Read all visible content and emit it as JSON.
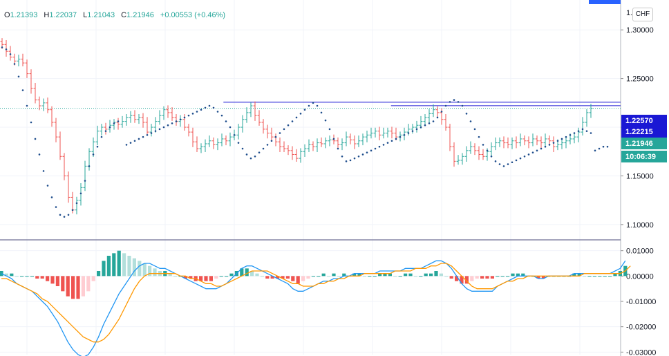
{
  "legend": {
    "o_label": "O",
    "open": "1.21393",
    "h_label": "H",
    "high": "1.22037",
    "l_label": "L",
    "low": "1.21043",
    "c_label": "C",
    "close": "1.21946",
    "change": "+0.00553 (+0.46%)"
  },
  "currency_button": "CHF",
  "colors": {
    "up": "#26a69a",
    "down": "#ef5350",
    "sar": "#1e4d8c",
    "macd": "#2196f3",
    "signal": "#ff9800",
    "hline": "#1a18d4",
    "hist_up_strong": "#26a69a",
    "hist_up_weak": "#b2dfdb",
    "hist_down_strong": "#ef5350",
    "hist_down_weak": "#ffcdd2"
  },
  "price_badges": [
    {
      "text": "1.22570",
      "color": "#1a18d4",
      "value": 1.2257
    },
    {
      "text": "1.22215",
      "color": "#1a18d4",
      "value": 1.22215
    },
    {
      "text": "1.21946",
      "color": "#26a69a",
      "value": 1.21946
    },
    {
      "text": "10:06:39",
      "color": "#26a69a",
      "value": null
    }
  ],
  "chart_data": [
    {
      "type": "line",
      "subtype": "ohlc-bars",
      "ylim": [
        1.085,
        1.325
      ],
      "yticks": [
        "1.10000",
        "1.15000",
        "1.20000",
        "1.25000",
        "1.30000"
      ],
      "ytick_values": [
        1.1,
        1.15,
        1.2,
        1.25,
        1.3
      ],
      "top_tick_partial": "1.",
      "horizontal_lines": [
        {
          "value": 1.2257,
          "x_start_fraction": 0.36
        },
        {
          "value": 1.22215,
          "x_start_fraction": 0.63
        }
      ],
      "last_close": 1.21946,
      "close_series": [
        1.285,
        1.278,
        1.272,
        1.268,
        1.27,
        1.266,
        1.255,
        1.24,
        1.228,
        1.222,
        1.225,
        1.218,
        1.205,
        1.19,
        1.17,
        1.15,
        1.128,
        1.115,
        1.125,
        1.138,
        1.16,
        1.175,
        1.185,
        1.196,
        1.2,
        1.198,
        1.202,
        1.205,
        1.203,
        1.206,
        1.21,
        1.212,
        1.208,
        1.21,
        1.205,
        1.195,
        1.2,
        1.206,
        1.212,
        1.218,
        1.215,
        1.21,
        1.206,
        1.208,
        1.2,
        1.195,
        1.185,
        1.178,
        1.18,
        1.183,
        1.186,
        1.182,
        1.184,
        1.188,
        1.186,
        1.19,
        1.192,
        1.2,
        1.208,
        1.215,
        1.222,
        1.212,
        1.205,
        1.198,
        1.194,
        1.19,
        1.185,
        1.18,
        1.178,
        1.176,
        1.172,
        1.168,
        1.175,
        1.178,
        1.182,
        1.18,
        1.184,
        1.183,
        1.186,
        1.187,
        1.186,
        1.182,
        1.184,
        1.19,
        1.187,
        1.183,
        1.186,
        1.19,
        1.192,
        1.194,
        1.196,
        1.192,
        1.194,
        1.196,
        1.194,
        1.19,
        1.192,
        1.195,
        1.198,
        1.2,
        1.202,
        1.206,
        1.21,
        1.214,
        1.218,
        1.215,
        1.208,
        1.2,
        1.18,
        1.165,
        1.166,
        1.17,
        1.176,
        1.18,
        1.176,
        1.172,
        1.17,
        1.175,
        1.18,
        1.184,
        1.186,
        1.184,
        1.182,
        1.186,
        1.184,
        1.188,
        1.186,
        1.184,
        1.188,
        1.186,
        1.184,
        1.188,
        1.186,
        1.18,
        1.182,
        1.184,
        1.186,
        1.188,
        1.19,
        1.195,
        1.205,
        1.215,
        1.21946
      ],
      "sar_series": [
        1.282,
        1.28,
        1.275,
        1.265,
        1.252,
        1.238,
        1.222,
        1.205,
        1.188,
        1.172,
        1.155,
        1.14,
        1.128,
        1.118,
        1.11,
        1.108,
        1.11,
        1.115,
        1.122,
        1.132,
        1.145,
        1.16,
        1.172,
        1.18,
        1.19,
        1.196,
        1.2,
        1.204,
        1.206,
        null,
        1.182,
        1.184,
        1.186,
        1.188,
        1.19,
        1.192,
        1.194,
        1.196,
        1.198,
        1.2,
        1.202,
        1.204,
        1.206,
        1.208,
        1.21,
        1.212,
        1.214,
        1.216,
        1.218,
        1.22,
        1.222,
        1.22,
        1.216,
        1.212,
        1.206,
        1.2,
        1.192,
        1.184,
        1.178,
        1.172,
        1.168,
        1.17,
        1.174,
        1.178,
        1.182,
        1.186,
        1.19,
        1.194,
        1.198,
        1.202,
        1.206,
        1.21,
        1.214,
        1.218,
        1.222,
        1.225,
        1.222,
        1.215,
        1.207,
        1.198,
        1.188,
        1.178,
        1.17,
        1.165,
        1.166,
        1.168,
        1.17,
        1.172,
        1.174,
        1.176,
        1.178,
        1.18,
        1.182,
        1.184,
        1.186,
        1.188,
        1.19,
        1.192,
        1.194,
        1.196,
        1.198,
        1.2,
        1.202,
        1.204,
        1.206,
        1.21,
        1.216,
        1.222,
        1.226,
        1.228,
        1.226,
        1.222,
        1.214,
        1.206,
        1.198,
        1.19,
        1.182,
        1.176,
        1.17,
        1.165,
        1.162,
        1.16,
        1.162,
        1.164,
        1.166,
        1.168,
        1.17,
        1.172,
        1.174,
        1.176,
        1.178,
        1.18,
        1.182,
        1.184,
        1.186,
        1.188,
        1.19,
        1.192,
        1.194,
        1.196,
        1.198,
        1.196,
        1.194,
        1.176,
        1.178,
        1.18,
        1.18
      ]
    },
    {
      "type": "line",
      "subtype": "macd",
      "ylim": [
        -0.031,
        0.014
      ],
      "yticks": [
        "0.01000",
        "0.00000",
        "-0.01000",
        "-0.02000",
        "-0.03000"
      ],
      "ytick_values": [
        0.01,
        0.0,
        -0.01,
        -0.02,
        -0.03
      ],
      "series": [
        {
          "key": "macd",
          "values": [
            0.001,
            0.0,
            -0.001,
            -0.003,
            -0.004,
            -0.005,
            -0.006,
            -0.008,
            -0.01,
            -0.012,
            -0.015,
            -0.018,
            -0.022,
            -0.026,
            -0.029,
            -0.031,
            -0.032,
            -0.031,
            -0.028,
            -0.024,
            -0.019,
            -0.015,
            -0.011,
            -0.007,
            -0.004,
            -0.001,
            0.002,
            0.004,
            0.005,
            0.005,
            0.004,
            0.003,
            0.003,
            0.002,
            0.001,
            0.0,
            -0.001,
            -0.002,
            -0.003,
            -0.004,
            -0.005,
            -0.005,
            -0.005,
            -0.004,
            -0.003,
            -0.001,
            0.001,
            0.003,
            0.004,
            0.004,
            0.003,
            0.002,
            0.001,
            0.0,
            -0.001,
            -0.002,
            -0.003,
            -0.005,
            -0.006,
            -0.006,
            -0.005,
            -0.004,
            -0.003,
            -0.002,
            -0.002,
            -0.001,
            -0.001,
            0.0,
            0.0,
            0.001,
            0.001,
            0.001,
            0.001,
            0.001,
            0.002,
            0.002,
            0.002,
            0.002,
            0.002,
            0.003,
            0.003,
            0.003,
            0.003,
            0.004,
            0.005,
            0.006,
            0.006,
            0.005,
            0.003,
            0.0,
            -0.003,
            -0.005,
            -0.006,
            -0.006,
            -0.006,
            -0.006,
            -0.006,
            -0.004,
            -0.003,
            -0.002,
            -0.001,
            0.0,
            0.0,
            0.0,
            0.0,
            -0.001,
            -0.001,
            0.0,
            0.0,
            0.0,
            0.0,
            0.0,
            0.001,
            0.001,
            0.001,
            0.001,
            0.001,
            0.001,
            0.001,
            0.001,
            0.002,
            0.003,
            0.006
          ]
        },
        {
          "key": "signal",
          "values": [
            -0.001,
            -0.001,
            -0.002,
            -0.003,
            -0.004,
            -0.005,
            -0.006,
            -0.007,
            -0.009,
            -0.01,
            -0.012,
            -0.014,
            -0.016,
            -0.018,
            -0.02,
            -0.022,
            -0.024,
            -0.025,
            -0.026,
            -0.026,
            -0.025,
            -0.023,
            -0.02,
            -0.017,
            -0.013,
            -0.009,
            -0.005,
            -0.002,
            0.0,
            0.001,
            0.001,
            0.001,
            0.001,
            0.001,
            0.001,
            0.0,
            0.0,
            -0.001,
            -0.001,
            -0.002,
            -0.003,
            -0.003,
            -0.004,
            -0.004,
            -0.003,
            -0.002,
            -0.001,
            0.0,
            0.001,
            0.002,
            0.002,
            0.002,
            0.002,
            0.001,
            0.0,
            -0.001,
            -0.002,
            -0.003,
            -0.003,
            -0.004,
            -0.004,
            -0.004,
            -0.003,
            -0.003,
            -0.002,
            -0.002,
            -0.001,
            -0.001,
            0.0,
            0.0,
            0.0,
            0.001,
            0.001,
            0.001,
            0.001,
            0.001,
            0.001,
            0.002,
            0.002,
            0.002,
            0.002,
            0.003,
            0.003,
            0.003,
            0.004,
            0.004,
            0.005,
            0.005,
            0.004,
            0.002,
            0.0,
            -0.002,
            -0.004,
            -0.005,
            -0.005,
            -0.005,
            -0.005,
            -0.004,
            -0.003,
            -0.002,
            -0.002,
            -0.001,
            -0.001,
            0.0,
            0.0,
            0.0,
            0.0,
            0.0,
            0.0,
            0.0,
            0.0,
            0.0,
            0.0,
            0.0,
            0.001,
            0.001,
            0.001,
            0.001,
            0.001,
            0.001,
            0.001,
            0.001,
            0.002,
            0.004
          ]
        }
      ]
    }
  ]
}
